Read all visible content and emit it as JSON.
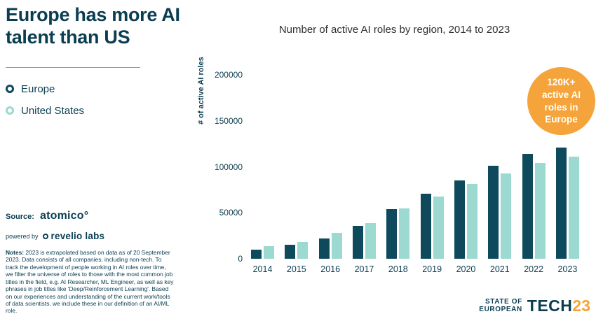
{
  "page": {
    "background": "#ffffff"
  },
  "sidebar": {
    "title": "Europe has more AI talent than US",
    "legend": [
      {
        "label": "Europe",
        "color": "#0e4a5c"
      },
      {
        "label": "United States",
        "color": "#9cd9d0"
      }
    ],
    "source_label": "Source:",
    "source_name": "atomico°",
    "powered_by": "powered by",
    "powered_name": "revelio labs",
    "notes_label": "Notes:",
    "notes_text": "2023 is extrapolated based on data as of 20 September 2023. Data consists of all companies, including non-tech. To track the development of people working in AI roles over time, we filter the universe of roles to those with the most common job titles in the field, e.g. AI Researcher, ML Engineer, as well as key phrases in job titles like 'Deep/Reinforcement Learning'. Based on our experiences and understanding of the current work/tools of data scientists, we include these in our definition of an AI/ML role."
  },
  "chart": {
    "title": "Number of active AI roles by region, 2014 to 2023",
    "ylabel": "# of active AI roles",
    "yticks": [
      "200000",
      "150000",
      "100000",
      "50000",
      "0"
    ]
  },
  "chart_data": {
    "type": "bar",
    "title": "Number of active AI roles by region, 2014 to 2023",
    "categories": [
      "2014",
      "2015",
      "2016",
      "2017",
      "2018",
      "2019",
      "2020",
      "2021",
      "2022",
      "2023"
    ],
    "series": [
      {
        "name": "Europe",
        "color": "#0e4a5c",
        "values": [
          10000,
          15000,
          22000,
          36000,
          54000,
          71000,
          85000,
          101000,
          114000,
          121000
        ]
      },
      {
        "name": "United States",
        "color": "#9cd9d0",
        "values": [
          14000,
          18500,
          28000,
          39000,
          55000,
          68000,
          81000,
          93000,
          104000,
          111000
        ]
      }
    ],
    "ylabel": "# of active AI roles",
    "xlabel": "",
    "ylim": [
      0,
      200000
    ],
    "grid": false,
    "legend_position": "left"
  },
  "badge": {
    "color": "#f4a43a",
    "lines": [
      "120K+",
      "active AI",
      "roles in",
      "Europe"
    ]
  },
  "logo": {
    "state_of": "STATE OF",
    "european": "EUROPEAN",
    "tech": "TECH",
    "year": "23"
  }
}
